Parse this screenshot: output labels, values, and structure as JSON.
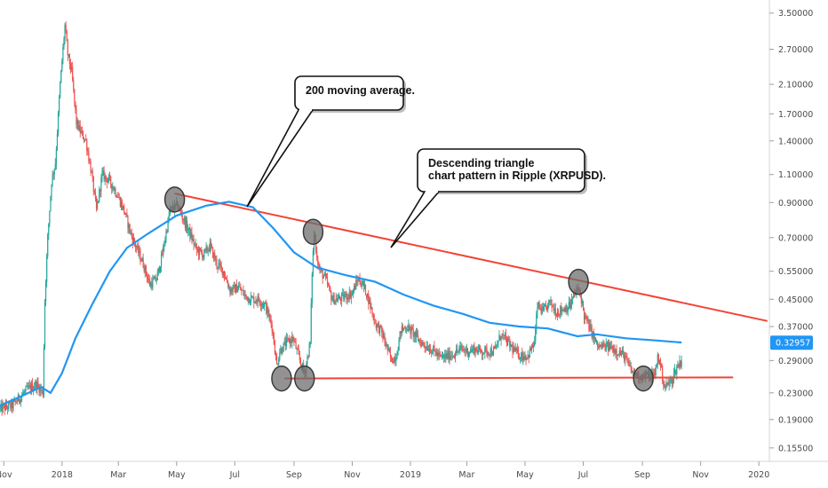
{
  "chart_data": {
    "type": "line",
    "title": "",
    "xlabel": "",
    "ylabel": "",
    "y_scale": "log",
    "ylim": [
      0.15,
      3.7
    ],
    "xlim": [
      "2017-10-28",
      "2020-01-12"
    ],
    "grid": false,
    "x_ticks": [
      {
        "label": "Nov",
        "date": "2017-11-01"
      },
      {
        "label": "2018",
        "date": "2018-01-01"
      },
      {
        "label": "Mar",
        "date": "2018-03-01"
      },
      {
        "label": "May",
        "date": "2018-05-01"
      },
      {
        "label": "Jul",
        "date": "2018-07-01"
      },
      {
        "label": "Sep",
        "date": "2018-09-01"
      },
      {
        "label": "Nov",
        "date": "2018-11-01"
      },
      {
        "label": "2019",
        "date": "2019-01-01"
      },
      {
        "label": "Mar",
        "date": "2019-03-01"
      },
      {
        "label": "May",
        "date": "2019-05-01"
      },
      {
        "label": "Jul",
        "date": "2019-07-01"
      },
      {
        "label": "Sep",
        "date": "2019-09-01"
      },
      {
        "label": "Nov",
        "date": "2019-11-01"
      },
      {
        "label": "2020",
        "date": "2020-01-01"
      }
    ],
    "y_ticks": [
      {
        "label": "3.50000",
        "value": 3.5
      },
      {
        "label": "2.70000",
        "value": 2.7
      },
      {
        "label": "2.10000",
        "value": 2.1
      },
      {
        "label": "1.70000",
        "value": 1.7
      },
      {
        "label": "1.40000",
        "value": 1.4
      },
      {
        "label": "1.10000",
        "value": 1.1
      },
      {
        "label": "0.90000",
        "value": 0.9
      },
      {
        "label": "0.70000",
        "value": 0.7
      },
      {
        "label": "0.55000",
        "value": 0.55
      },
      {
        "label": "0.45000",
        "value": 0.45
      },
      {
        "label": "0.37000",
        "value": 0.37
      },
      {
        "label": "0.29000",
        "value": 0.29
      },
      {
        "label": "0.23000",
        "value": 0.23
      },
      {
        "label": "0.19000",
        "value": 0.19
      },
      {
        "label": "0.15500",
        "value": 0.155
      }
    ],
    "last_price": {
      "label": "0.32957",
      "value": 0.32957,
      "color": "#2196f3"
    },
    "series": [
      {
        "kind": "candlestick",
        "up_color": "#26a69a",
        "down_color": "#ef5350",
        "path": [
          [
            "2017-10-28",
            0.205
          ],
          [
            "2017-11-10",
            0.21
          ],
          [
            "2017-11-25",
            0.235
          ],
          [
            "2017-12-05",
            0.245
          ],
          [
            "2017-12-12",
            0.23
          ],
          [
            "2017-12-14",
            0.45
          ],
          [
            "2017-12-17",
            0.7
          ],
          [
            "2017-12-21",
            1.05
          ],
          [
            "2017-12-25",
            1.2
          ],
          [
            "2017-12-30",
            2.1
          ],
          [
            "2018-01-04",
            3.2
          ],
          [
            "2018-01-07",
            2.6
          ],
          [
            "2018-01-11",
            2.3
          ],
          [
            "2018-01-16",
            1.6
          ],
          [
            "2018-01-20",
            1.5
          ],
          [
            "2018-01-26",
            1.4
          ],
          [
            "2018-02-01",
            1.1
          ],
          [
            "2018-02-06",
            0.85
          ],
          [
            "2018-02-12",
            1.1
          ],
          [
            "2018-02-20",
            1.05
          ],
          [
            "2018-02-28",
            0.95
          ],
          [
            "2018-03-07",
            0.85
          ],
          [
            "2018-03-14",
            0.72
          ],
          [
            "2018-03-20",
            0.65
          ],
          [
            "2018-03-27",
            0.58
          ],
          [
            "2018-04-03",
            0.5
          ],
          [
            "2018-04-10",
            0.52
          ],
          [
            "2018-04-16",
            0.62
          ],
          [
            "2018-04-24",
            0.85
          ],
          [
            "2018-05-02",
            0.88
          ],
          [
            "2018-05-08",
            0.8
          ],
          [
            "2018-05-15",
            0.72
          ],
          [
            "2018-05-22",
            0.64
          ],
          [
            "2018-05-29",
            0.62
          ],
          [
            "2018-06-05",
            0.66
          ],
          [
            "2018-06-12",
            0.58
          ],
          [
            "2018-06-19",
            0.55
          ],
          [
            "2018-06-26",
            0.48
          ],
          [
            "2018-07-05",
            0.49
          ],
          [
            "2018-07-12",
            0.46
          ],
          [
            "2018-07-19",
            0.45
          ],
          [
            "2018-07-26",
            0.45
          ],
          [
            "2018-08-02",
            0.43
          ],
          [
            "2018-08-09",
            0.37
          ],
          [
            "2018-08-14",
            0.28
          ],
          [
            "2018-08-17",
            0.31
          ],
          [
            "2018-08-24",
            0.33
          ],
          [
            "2018-08-31",
            0.34
          ],
          [
            "2018-09-07",
            0.29
          ],
          [
            "2018-09-12",
            0.265
          ],
          [
            "2018-09-18",
            0.33
          ],
          [
            "2018-09-20",
            0.55
          ],
          [
            "2018-09-22",
            0.72
          ],
          [
            "2018-09-27",
            0.56
          ],
          [
            "2018-10-04",
            0.52
          ],
          [
            "2018-10-11",
            0.45
          ],
          [
            "2018-10-18",
            0.45
          ],
          [
            "2018-10-25",
            0.46
          ],
          [
            "2018-11-01",
            0.47
          ],
          [
            "2018-11-07",
            0.52
          ],
          [
            "2018-11-12",
            0.5
          ],
          [
            "2018-11-16",
            0.47
          ],
          [
            "2018-11-20",
            0.43
          ],
          [
            "2018-11-25",
            0.38
          ],
          [
            "2018-12-01",
            0.36
          ],
          [
            "2018-12-07",
            0.32
          ],
          [
            "2018-12-12",
            0.29
          ],
          [
            "2018-12-17",
            0.3
          ],
          [
            "2018-12-22",
            0.36
          ],
          [
            "2018-12-28",
            0.37
          ],
          [
            "2019-01-05",
            0.35
          ],
          [
            "2019-01-12",
            0.33
          ],
          [
            "2019-01-19",
            0.32
          ],
          [
            "2019-01-26",
            0.31
          ],
          [
            "2019-02-02",
            0.295
          ],
          [
            "2019-02-09",
            0.3
          ],
          [
            "2019-02-16",
            0.305
          ],
          [
            "2019-02-23",
            0.315
          ],
          [
            "2019-03-02",
            0.31
          ],
          [
            "2019-03-09",
            0.315
          ],
          [
            "2019-03-16",
            0.31
          ],
          [
            "2019-03-23",
            0.31
          ],
          [
            "2019-03-30",
            0.31
          ],
          [
            "2019-04-06",
            0.35
          ],
          [
            "2019-04-13",
            0.33
          ],
          [
            "2019-04-20",
            0.31
          ],
          [
            "2019-04-27",
            0.3
          ],
          [
            "2019-05-04",
            0.3
          ],
          [
            "2019-05-11",
            0.33
          ],
          [
            "2019-05-14",
            0.43
          ],
          [
            "2019-05-20",
            0.41
          ],
          [
            "2019-05-27",
            0.44
          ],
          [
            "2019-06-03",
            0.41
          ],
          [
            "2019-06-10",
            0.42
          ],
          [
            "2019-06-17",
            0.43
          ],
          [
            "2019-06-24",
            0.48
          ],
          [
            "2019-06-28",
            0.47
          ],
          [
            "2019-07-02",
            0.4
          ],
          [
            "2019-07-09",
            0.36
          ],
          [
            "2019-07-16",
            0.32
          ],
          [
            "2019-07-23",
            0.32
          ],
          [
            "2019-07-30",
            0.32
          ],
          [
            "2019-08-06",
            0.31
          ],
          [
            "2019-08-13",
            0.3
          ],
          [
            "2019-08-20",
            0.27
          ],
          [
            "2019-08-27",
            0.26
          ],
          [
            "2019-09-03",
            0.26
          ],
          [
            "2019-09-10",
            0.26
          ],
          [
            "2019-09-14",
            0.26
          ],
          [
            "2019-09-17",
            0.3
          ],
          [
            "2019-09-20",
            0.28
          ],
          [
            "2019-09-24",
            0.24
          ],
          [
            "2019-10-01",
            0.25
          ],
          [
            "2019-10-08",
            0.28
          ],
          [
            "2019-10-12",
            0.29
          ]
        ]
      },
      {
        "kind": "line",
        "color": "#2196f3",
        "points": [
          [
            "2017-10-28",
            0.21
          ],
          [
            "2017-11-20",
            0.225
          ],
          [
            "2017-12-10",
            0.24
          ],
          [
            "2017-12-20",
            0.23
          ],
          [
            "2018-01-01",
            0.265
          ],
          [
            "2018-01-15",
            0.34
          ],
          [
            "2018-02-01",
            0.43
          ],
          [
            "2018-02-20",
            0.55
          ],
          [
            "2018-03-10",
            0.65
          ],
          [
            "2018-04-01",
            0.72
          ],
          [
            "2018-05-01",
            0.82
          ],
          [
            "2018-06-01",
            0.88
          ],
          [
            "2018-06-25",
            0.905
          ],
          [
            "2018-07-20",
            0.87
          ],
          [
            "2018-08-10",
            0.75
          ],
          [
            "2018-09-01",
            0.63
          ],
          [
            "2018-09-25",
            0.565
          ],
          [
            "2018-10-25",
            0.535
          ],
          [
            "2018-11-25",
            0.51
          ],
          [
            "2018-12-25",
            0.465
          ],
          [
            "2019-01-25",
            0.43
          ],
          [
            "2019-02-25",
            0.405
          ],
          [
            "2019-03-25",
            0.38
          ],
          [
            "2019-04-25",
            0.37
          ],
          [
            "2019-05-25",
            0.365
          ],
          [
            "2019-06-25",
            0.345
          ],
          [
            "2019-07-15",
            0.35
          ],
          [
            "2019-08-15",
            0.34
          ],
          [
            "2019-09-15",
            0.335
          ],
          [
            "2019-10-12",
            0.33
          ]
        ]
      }
    ],
    "trendlines": [
      {
        "kind": "resistance",
        "color": "#f44336",
        "from": [
          "2018-04-29",
          0.96
        ],
        "to": [
          "2020-01-10",
          0.385
        ]
      },
      {
        "kind": "support",
        "color": "#f44336",
        "from": [
          "2018-08-22",
          0.255
        ],
        "to": [
          "2019-12-05",
          0.257
        ]
      }
    ],
    "markers": [
      {
        "date": "2018-04-29",
        "value": 0.92
      },
      {
        "date": "2018-09-21",
        "value": 0.73
      },
      {
        "date": "2019-06-26",
        "value": 0.51
      },
      {
        "date": "2018-08-19",
        "value": 0.255
      },
      {
        "date": "2018-09-12",
        "value": 0.255
      },
      {
        "date": "2019-09-02",
        "value": 0.255
      }
    ],
    "annotations": [
      {
        "id": "ma",
        "lines": [
          "200 moving average."
        ]
      },
      {
        "id": "triangle",
        "lines": [
          "Descending triangle",
          "chart pattern in Ripple (XRPUSD)."
        ]
      }
    ]
  }
}
